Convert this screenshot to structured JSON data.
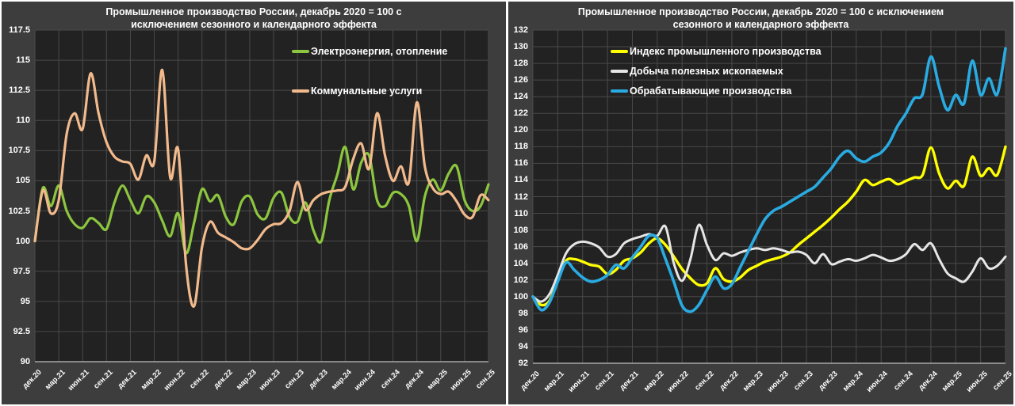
{
  "chart_data": [
    {
      "type": "line",
      "panel": "left",
      "title_line1": "Промышленное производство России, декабрь 2020 = 100 с",
      "title_line2": "исключением сезонного и календарного эффекта",
      "ylim": [
        90,
        117.5
      ],
      "ytick_step": 2.5,
      "grid": true,
      "legend_position": "inside-top-right",
      "plot_background": "#222222",
      "panel_background": "#3d3d3d",
      "gridline_color": "#4a4a4a",
      "axis_line_color": "#a8a8a8",
      "x_tick_labels": [
        "дек.20",
        "мар.21",
        "июн.21",
        "сен.21",
        "дек.21",
        "мар.22",
        "июн.22",
        "сен.22",
        "дек.22",
        "мар.23",
        "июн.23",
        "сен.23",
        "дек.23",
        "мар.24",
        "июн.24",
        "сен.24",
        "дек.24",
        "мар.25",
        "июн.25",
        "сен.25"
      ],
      "series": [
        {
          "name": "Электроэнергия, отопление",
          "color": "#8CC63E",
          "values": [
            100.0,
            104.4,
            102.9,
            104.6,
            102.5,
            101.4,
            101.1,
            101.9,
            101.5,
            101.0,
            103.2,
            104.6,
            103.4,
            102.3,
            103.7,
            103.2,
            101.7,
            100.4,
            102.3,
            99.0,
            101.5,
            104.3,
            103.3,
            103.8,
            102.0,
            101.4,
            103.3,
            103.7,
            102.2,
            101.9,
            103.6,
            104.0,
            102.0,
            101.6,
            103.2,
            100.9,
            100.0,
            103.4,
            105.5,
            107.8,
            104.3,
            106.5,
            107.1,
            103.4,
            102.9,
            104.0,
            103.9,
            102.9,
            100.0,
            103.7,
            105.1,
            104.2,
            105.6,
            106.2,
            103.4,
            102.5,
            102.9,
            104.7
          ]
        },
        {
          "name": "Коммунальные услуги",
          "color": "#F2BA8C",
          "values": [
            100.0,
            104.2,
            102.3,
            103.4,
            108.9,
            110.6,
            109.3,
            113.9,
            110.6,
            108.2,
            107.0,
            106.6,
            106.4,
            105.1,
            107.1,
            106.6,
            114.2,
            105.3,
            107.6,
            98.0,
            94.6,
            99.5,
            101.6,
            100.7,
            100.3,
            99.9,
            99.4,
            99.4,
            100.1,
            101.0,
            101.4,
            101.5,
            102.5,
            104.9,
            102.6,
            103.4,
            103.9,
            104.1,
            104.2,
            104.5,
            106.8,
            108.1,
            106.0,
            110.6,
            107.1,
            105.0,
            106.2,
            104.9,
            111.5,
            106.2,
            104.4,
            103.9,
            104.1,
            103.3,
            102.2,
            102.0,
            103.8,
            103.4
          ]
        }
      ]
    },
    {
      "type": "line",
      "panel": "right",
      "title_line1": "Промышленное производство России, декабрь 2020 = 100 с исключением",
      "title_line2": "сезонного и календарного эффекта",
      "ylim": [
        92,
        132
      ],
      "ytick_step": 2,
      "grid": true,
      "legend_position": "inside-top-left",
      "plot_background": "#222222",
      "panel_background": "#3d3d3d",
      "gridline_color": "#4a4a4a",
      "axis_line_color": "#a8a8a8",
      "x_tick_labels": [
        "дек.20",
        "мар.21",
        "июн.21",
        "сен.21",
        "дек.21",
        "мар.22",
        "июн.22",
        "сен.22",
        "дек.22",
        "мар.23",
        "июн.23",
        "сен.23",
        "дек.23",
        "мар.24",
        "июн.24",
        "сен.24",
        "дек.24",
        "мар.25",
        "июн.25",
        "сен.25"
      ],
      "series": [
        {
          "name": "Индекс промышленного производства",
          "color": "#FFFF00",
          "values": [
            100.0,
            99.0,
            99.5,
            102.0,
            104.3,
            104.5,
            104.2,
            103.8,
            103.6,
            102.7,
            103.2,
            104.3,
            104.6,
            105.3,
            106.4,
            107.0,
            106.2,
            104.8,
            103.3,
            102.2,
            101.4,
            101.6,
            103.4,
            102.1,
            101.8,
            102.3,
            103.2,
            103.7,
            104.2,
            104.5,
            104.8,
            105.3,
            106.2,
            107.0,
            107.8,
            108.6,
            109.5,
            110.5,
            111.4,
            112.6,
            114.0,
            113.4,
            113.8,
            114.1,
            113.5,
            113.9,
            114.3,
            114.6,
            117.9,
            114.8,
            113.0,
            113.9,
            113.3,
            116.8,
            114.5,
            115.4,
            114.6,
            118.0
          ]
        },
        {
          "name": "Добыча полезных ископаемых",
          "color": "#E6E6E6",
          "values": [
            100.0,
            99.4,
            100.3,
            102.6,
            105.2,
            106.3,
            106.6,
            106.4,
            105.9,
            104.8,
            105.1,
            106.4,
            106.9,
            107.2,
            107.5,
            107.3,
            108.4,
            104.0,
            101.9,
            104.5,
            108.6,
            106.2,
            104.4,
            105.2,
            104.9,
            105.3,
            105.6,
            105.8,
            105.6,
            105.8,
            105.6,
            105.3,
            105.4,
            105.0,
            104.0,
            105.1,
            103.9,
            104.2,
            104.5,
            104.3,
            104.6,
            105.0,
            104.7,
            104.3,
            104.5,
            105.1,
            106.3,
            105.6,
            106.4,
            104.5,
            102.8,
            102.2,
            101.8,
            103.0,
            104.6,
            103.4,
            103.7,
            104.8
          ]
        },
        {
          "name": "Обрабатывающие производства",
          "color": "#29ABE2",
          "values": [
            100.0,
            98.4,
            99.3,
            101.8,
            104.1,
            103.2,
            102.3,
            101.8,
            102.0,
            102.6,
            103.8,
            103.4,
            104.7,
            106.0,
            107.3,
            107.0,
            104.5,
            101.8,
            98.9,
            98.2,
            99.0,
            100.8,
            102.4,
            101.0,
            101.5,
            103.5,
            105.5,
            107.5,
            109.3,
            110.3,
            110.8,
            111.4,
            112.0,
            112.6,
            113.2,
            114.3,
            115.4,
            116.8,
            117.5,
            116.6,
            116.2,
            116.8,
            117.3,
            118.5,
            120.5,
            122.0,
            123.8,
            124.3,
            128.8,
            125.2,
            122.4,
            124.2,
            123.2,
            128.3,
            124.2,
            126.2,
            124.3,
            129.8
          ]
        }
      ]
    }
  ]
}
